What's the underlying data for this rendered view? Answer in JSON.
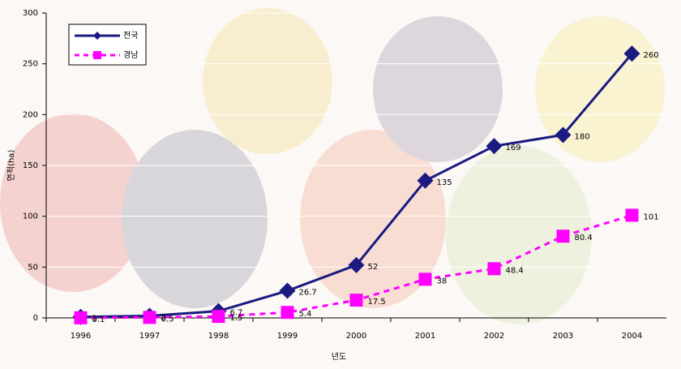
{
  "chart_data": {
    "type": "line",
    "x_label": "년도",
    "y_label": "면적(ha)",
    "categories": [
      "1996",
      "1997",
      "1998",
      "1999",
      "2000",
      "2001",
      "2002",
      "2003",
      "2004"
    ],
    "series": [
      {
        "name": "전국",
        "color": "#1a1a80",
        "values": [
          1,
          2,
          6.7,
          26.7,
          52,
          135,
          169,
          180,
          260
        ]
      },
      {
        "name": "경남",
        "color": "#ff00ff",
        "values": [
          0.1,
          0.5,
          1.5,
          5.4,
          17.5,
          38,
          48.4,
          80.4,
          101
        ]
      }
    ],
    "ylim": [
      0,
      300
    ],
    "yticks": [
      0,
      50,
      100,
      150,
      200,
      250,
      300
    ],
    "grid": true,
    "legend": "top-left"
  }
}
